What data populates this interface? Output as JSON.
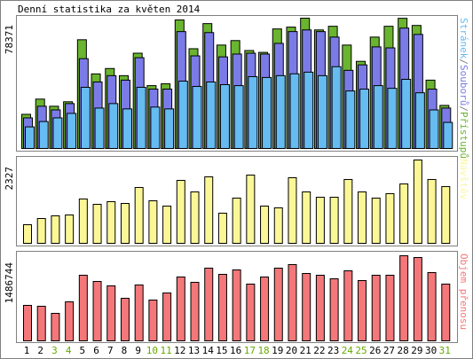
{
  "chart_data": [
    {
      "type": "overlap-bar",
      "title": "Denní statistika za květen 2014",
      "legend_separator": "/",
      "ylim": [
        0,
        78371
      ],
      "yticks": [
        78371
      ],
      "series": [
        {
          "name": "Přístupů",
          "color": "#6ab42f",
          "values": [
            20540,
            29700,
            25400,
            28100,
            65400,
            44860,
            48100,
            43800,
            57300,
            37800,
            38900,
            77300,
            60000,
            75100,
            62200,
            64900,
            58900,
            57800,
            71900,
            73000,
            78371,
            71300,
            73500,
            62200,
            52400,
            67000,
            73500,
            78300,
            74000,
            41100,
            25900
          ]
        },
        {
          "name": "Souborů",
          "color": "#7b7be8",
          "values": [
            18400,
            25400,
            23200,
            27000,
            54000,
            40000,
            43800,
            41100,
            54600,
            35700,
            35700,
            70300,
            55700,
            69700,
            55100,
            56800,
            57300,
            56800,
            63200,
            70300,
            71300,
            70300,
            67000,
            47000,
            50300,
            61100,
            60500,
            72400,
            68600,
            35700,
            24300
          ]
        },
        {
          "name": "Stránek",
          "color": "#66bbf0",
          "values": [
            13000,
            16200,
            18400,
            21100,
            36800,
            24300,
            27000,
            23800,
            36800,
            24900,
            23800,
            40500,
            37300,
            40000,
            38400,
            37800,
            43200,
            42700,
            43800,
            44900,
            45900,
            43800,
            49200,
            34600,
            35700,
            37800,
            36200,
            41600,
            33500,
            23200,
            15700
          ]
        }
      ]
    },
    {
      "type": "bar",
      "ylim": [
        0,
        2327
      ],
      "yticks": [
        2327
      ],
      "series": [
        {
          "name": "Návštěv",
          "color": "#fbf797",
          "values": [
            520,
            693,
            768,
            792,
            1238,
            1089,
            1164,
            1114,
            1560,
            1188,
            1040,
            1758,
            1436,
            1857,
            842,
            1263,
            1906,
            1040,
            990,
            1832,
            1436,
            1287,
            1287,
            1783,
            1436,
            1263,
            1387,
            1659,
            2327,
            1783,
            1585
          ]
        }
      ]
    },
    {
      "type": "bar",
      "ylim": [
        0,
        1486744
      ],
      "yticks": [
        1486744
      ],
      "categories": [
        "1",
        "2",
        "3",
        "4",
        "5",
        "6",
        "7",
        "8",
        "9",
        "10",
        "11",
        "12",
        "13",
        "14",
        "15",
        "16",
        "17",
        "18",
        "19",
        "20",
        "21",
        "22",
        "23",
        "24",
        "25",
        "26",
        "27",
        "28",
        "29",
        "30",
        "31"
      ],
      "category_colors": [
        "#000000",
        "#000000",
        "#66aa00",
        "#66aa00",
        "#000000",
        "#000000",
        "#000000",
        "#000000",
        "#000000",
        "#66aa00",
        "#66aa00",
        "#000000",
        "#000000",
        "#000000",
        "#000000",
        "#000000",
        "#66aa00",
        "#66aa00",
        "#000000",
        "#000000",
        "#000000",
        "#000000",
        "#000000",
        "#66aa00",
        "#66aa00",
        "#000000",
        "#000000",
        "#000000",
        "#000000",
        "#000000",
        "#66aa00"
      ],
      "series": [
        {
          "name": "Objem přenosu",
          "color": "#f4777a",
          "values": [
            619500,
            604000,
            480100,
            681400,
            1146000,
            1037600,
            960200,
            743400,
            975700,
            712400,
            836300,
            1115100,
            1022100,
            1269900,
            1161500,
            1239000,
            991200,
            1115100,
            1269900,
            1331900,
            1177000,
            1146000,
            1084100,
            1223500,
            1053100,
            1146000,
            1146000,
            1486744,
            1455800,
            1192500,
            991200
          ]
        }
      ]
    }
  ]
}
